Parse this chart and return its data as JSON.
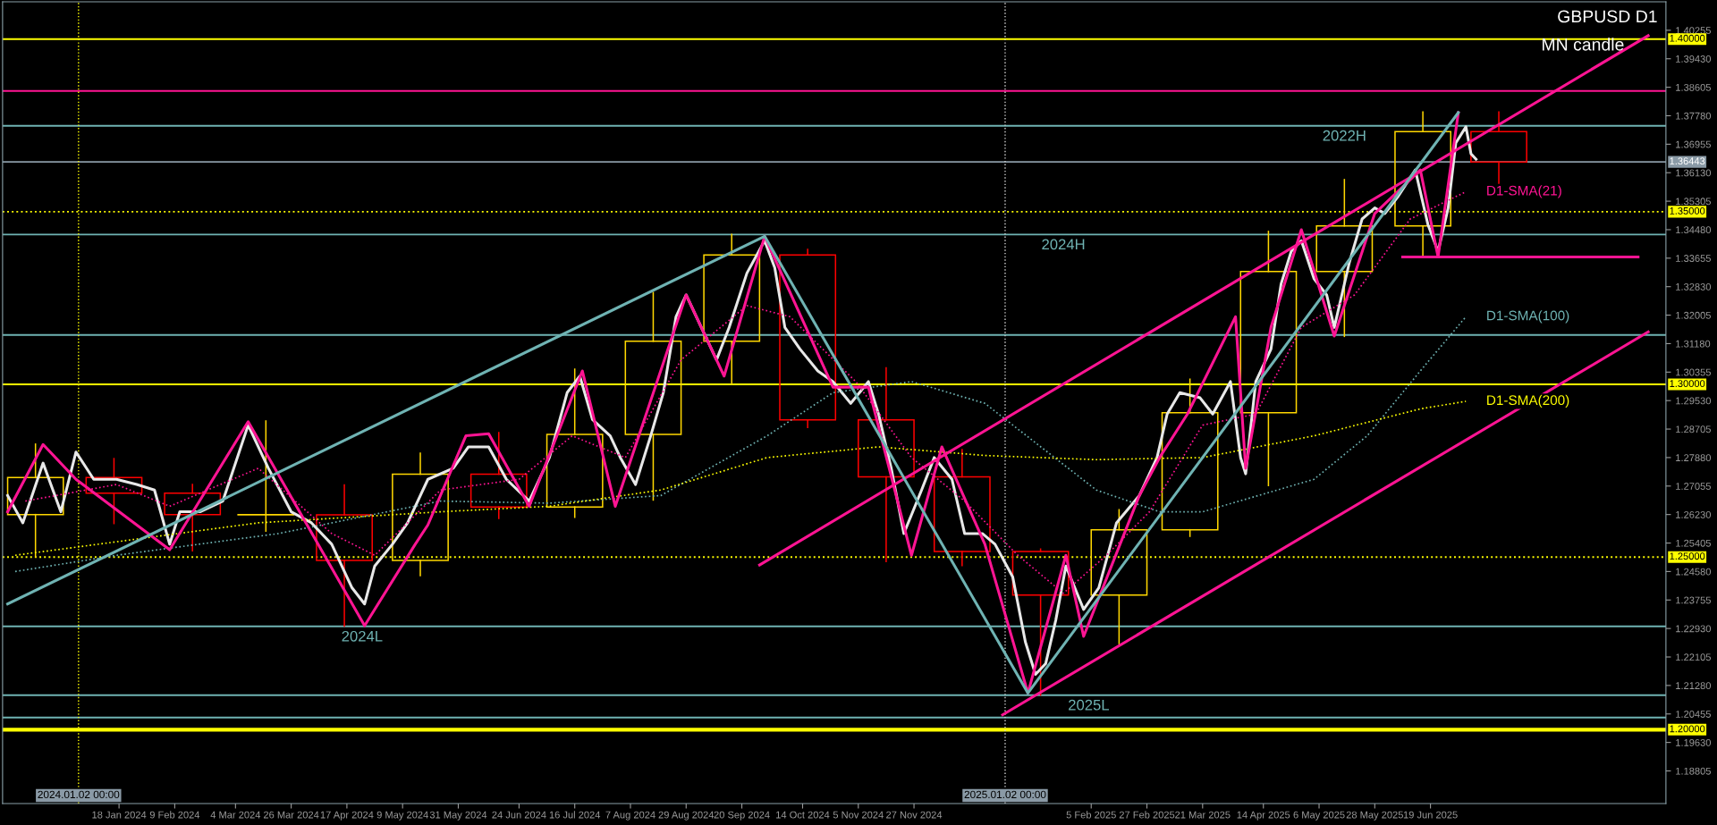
{
  "chart_data": {
    "type": "line",
    "title": "GBPUSD D1",
    "subtitle": "MN candle",
    "xlim": [
      "2023-12-03",
      "2025-09-20"
    ],
    "ylim": [
      1.1786,
      1.4108
    ],
    "xticks": [
      {
        "value": "2024-01-18",
        "label": "18 Jan 2024"
      },
      {
        "value": "2024-02-09",
        "label": "9 Feb 2024"
      },
      {
        "value": "2024-03-04",
        "label": "4 Mar 2024"
      },
      {
        "value": "2024-03-26",
        "label": "26 Mar 2024"
      },
      {
        "value": "2024-04-17",
        "label": "17 Apr 2024"
      },
      {
        "value": "2024-05-09",
        "label": "9 May 2024"
      },
      {
        "value": "2024-05-31",
        "label": "31 May 2024"
      },
      {
        "value": "2024-06-24",
        "label": "24 Jun 2024"
      },
      {
        "value": "2024-07-16",
        "label": "16 Jul 2024"
      },
      {
        "value": "2024-08-07",
        "label": "7 Aug 2024"
      },
      {
        "value": "2024-08-29",
        "label": "29 Aug 2024"
      },
      {
        "value": "2024-09-20",
        "label": "20 Sep 2024"
      },
      {
        "value": "2024-10-14",
        "label": "14 Oct 2024"
      },
      {
        "value": "2024-11-05",
        "label": "5 Nov 2024"
      },
      {
        "value": "2024-11-27",
        "label": "27 Nov 2024"
      },
      {
        "value": "2025-02-05",
        "label": "5 Feb 2025"
      },
      {
        "value": "2025-02-27",
        "label": "27 Feb 2025"
      },
      {
        "value": "2025-03-21",
        "label": "21 Mar 2025"
      },
      {
        "value": "2025-04-14",
        "label": "14 Apr 2025"
      },
      {
        "value": "2025-05-06",
        "label": "6 May 2025"
      },
      {
        "value": "2025-05-28",
        "label": "28 May 2025"
      },
      {
        "value": "2025-06-19",
        "label": "19 Jun 2025"
      }
    ],
    "yticks": [
      1.18805,
      {
        "value": 1.1963,
        "label": "1.19630"
      },
      1.20455,
      {
        "value": 1.2128,
        "label": "1.21280"
      },
      1.22105,
      {
        "value": 1.2293,
        "label": "1.22930"
      },
      1.23755,
      {
        "value": 1.2458,
        "label": "1.24580"
      },
      1.25405,
      {
        "value": 1.2623,
        "label": "1.26230"
      },
      1.27055,
      {
        "value": 1.2788,
        "label": "1.27880"
      },
      1.28705,
      {
        "value": 1.2953,
        "label": "1.29530"
      },
      1.30355,
      {
        "value": 1.3118,
        "label": "1.31180"
      },
      1.32005,
      {
        "value": 1.3283,
        "label": "1.32830"
      },
      1.33655,
      {
        "value": 1.3448,
        "label": "1.34480"
      },
      1.35305,
      {
        "value": 1.3613,
        "label": "1.36130"
      },
      1.36955,
      {
        "value": 1.3778,
        "label": "1.37780"
      },
      1.38605,
      {
        "value": 1.3943,
        "label": "1.39430"
      },
      1.40255
    ],
    "grid": false,
    "legend": false,
    "series": [
      {
        "type": "candlestick",
        "colors": [
          "#ffd700",
          "#ff0000",
          "#ff0000",
          "#ffd700",
          "#ff0000",
          "#ffd700",
          "#ff0000",
          "#ffd700",
          "#ffd700",
          "#ffd700",
          "#ff0000",
          "#ff0000",
          "#ff0000",
          "#ff0000",
          "#ffd700",
          "#ffd700",
          "#ffd700",
          "#ffd700",
          "#ffd700",
          "#ff0000"
        ],
        "x": [
          "2023-12-16",
          "2024-01-16",
          "2024-02-16",
          "2024-03-16",
          "2024-04-16",
          "2024-05-16",
          "2024-06-16",
          "2024-07-16",
          "2024-08-16",
          "2024-09-16",
          "2024-10-16",
          "2024-11-16",
          "2024-12-16",
          "2025-01-16",
          "2025-02-16",
          "2025-03-16",
          "2025-04-16",
          "2025-05-16",
          "2025-06-16",
          "2025-07-16"
        ],
        "ohlc": [
          [
            1.2623,
            1.2827,
            1.25,
            1.273
          ],
          [
            1.273,
            1.2785,
            1.2597,
            1.2685
          ],
          [
            1.2685,
            1.271,
            1.2518,
            1.2623
          ],
          [
            1.2623,
            1.2894,
            1.2575,
            1.2622
          ],
          [
            1.2622,
            1.2709,
            1.23,
            1.249
          ],
          [
            1.249,
            1.2801,
            1.2446,
            1.274
          ],
          [
            1.274,
            1.286,
            1.2612,
            1.2645
          ],
          [
            1.2645,
            1.3044,
            1.2615,
            1.2855
          ],
          [
            1.2855,
            1.3266,
            1.2665,
            1.3125
          ],
          [
            1.3125,
            1.3434,
            1.3001,
            1.3375
          ],
          [
            1.3375,
            1.3391,
            1.2875,
            1.2897
          ],
          [
            1.2897,
            1.3048,
            1.2487,
            1.2732
          ],
          [
            1.2732,
            1.2811,
            1.2475,
            1.2516
          ],
          [
            1.2516,
            1.2523,
            1.21,
            1.239
          ],
          [
            1.239,
            1.2637,
            1.2249,
            1.2579
          ],
          [
            1.2579,
            1.3015,
            1.256,
            1.2918
          ],
          [
            1.2918,
            1.3443,
            1.2707,
            1.3327
          ],
          [
            1.3327,
            1.3593,
            1.3139,
            1.3459
          ],
          [
            1.3459,
            1.3789,
            1.337,
            1.3732
          ],
          [
            1.3732,
            1.3789,
            1.358,
            1.3644
          ]
        ]
      },
      {
        "color": "#e8e8e8",
        "line_style": "solid",
        "x": [
          "2023-12-05",
          "2023-12-11",
          "2023-12-19",
          "2023-12-26",
          "2024-01-01",
          "2024-01-08",
          "2024-01-17",
          "2024-01-25",
          "2024-02-01",
          "2024-02-07",
          "2024-02-11",
          "2024-02-19",
          "2024-02-28",
          "2024-03-09",
          "2024-03-17",
          "2024-03-26",
          "2024-04-03",
          "2024-04-11",
          "2024-04-19",
          "2024-04-24",
          "2024-04-28",
          "2024-05-05",
          "2024-05-11",
          "2024-05-19",
          "2024-05-29",
          "2024-06-04",
          "2024-06-12",
          "2024-06-19",
          "2024-06-28",
          "2024-07-06",
          "2024-07-13",
          "2024-07-18",
          "2024-07-23",
          "2024-07-30",
          "2024-08-03",
          "2024-08-09",
          "2024-08-15",
          "2024-08-20",
          "2024-08-25",
          "2024-08-29",
          "2024-09-05",
          "2024-09-10",
          "2024-09-15",
          "2024-09-22",
          "2024-09-29",
          "2024-10-03",
          "2024-10-07",
          "2024-10-13",
          "2024-10-20",
          "2024-10-26",
          "2024-11-02",
          "2024-11-09",
          "2024-11-13",
          "2024-11-18",
          "2024-11-23",
          "2024-11-30",
          "2024-12-05",
          "2024-12-12",
          "2024-12-17",
          "2024-12-24",
          "2024-12-29",
          "2025-01-05",
          "2025-01-10",
          "2025-01-14",
          "2025-01-18",
          "2025-01-22",
          "2025-01-26",
          "2025-02-02",
          "2025-02-08",
          "2025-02-15",
          "2025-02-24",
          "2025-03-03",
          "2025-03-07",
          "2025-03-12",
          "2025-03-20",
          "2025-03-25",
          "2025-04-01",
          "2025-04-05",
          "2025-04-07",
          "2025-04-11",
          "2025-04-17",
          "2025-04-21",
          "2025-04-25",
          "2025-04-29",
          "2025-05-04",
          "2025-05-09",
          "2025-05-12",
          "2025-05-18",
          "2025-05-23",
          "2025-05-28",
          "2025-06-01",
          "2025-06-06",
          "2025-06-13",
          "2025-06-18",
          "2025-06-22",
          "2025-06-26",
          "2025-06-29",
          "2025-07-03",
          "2025-07-05",
          "2025-07-07"
        ],
        "values": [
          1.2678,
          1.2599,
          1.2772,
          1.2631,
          1.2804,
          1.2725,
          1.2725,
          1.271,
          1.2694,
          1.2537,
          1.2631,
          1.2631,
          1.2662,
          1.2882,
          1.2757,
          1.2631,
          1.2599,
          1.2537,
          1.2411,
          1.2364,
          1.2474,
          1.2537,
          1.2599,
          1.2725,
          1.2757,
          1.2819,
          1.2819,
          1.2725,
          1.2662,
          1.2788,
          1.2976,
          1.3024,
          1.2898,
          1.2851,
          1.2788,
          1.271,
          1.2851,
          1.2976,
          1.3196,
          1.3259,
          1.3149,
          1.3071,
          1.3165,
          1.3322,
          1.3416,
          1.3338,
          1.3165,
          1.3102,
          1.3039,
          1.3008,
          1.2945,
          1.3008,
          1.2914,
          1.2757,
          1.2568,
          1.2694,
          1.2788,
          1.2725,
          1.2568,
          1.2568,
          1.2537,
          1.2442,
          1.2254,
          1.216,
          1.2191,
          1.2317,
          1.2474,
          1.2348,
          1.2411,
          1.2599,
          1.2678,
          1.2788,
          1.2914,
          1.2976,
          1.2961,
          1.2914,
          1.3008,
          1.2788,
          1.2741,
          1.3008,
          1.3102,
          1.3291,
          1.3385,
          1.3416,
          1.3306,
          1.3259,
          1.3165,
          1.3354,
          1.3479,
          1.3511,
          1.3495,
          1.3542,
          1.3621,
          1.3463,
          1.3385,
          1.3511,
          1.3699,
          1.3746,
          1.3668,
          1.3652
        ]
      },
      {
        "type": "line",
        "name": "D1-SMA(21)",
        "color": "#ff1493",
        "line_style": "dotted",
        "x": [
          "2023-12-12",
          "2024-01-17",
          "2024-02-07",
          "2024-03-13",
          "2024-04-11",
          "2024-04-28",
          "2024-05-24",
          "2024-06-24",
          "2024-07-15",
          "2024-08-05",
          "2024-08-27",
          "2024-09-22",
          "2024-10-09",
          "2024-11-04",
          "2024-11-26",
          "2024-12-17",
          "2025-01-07",
          "2025-01-25",
          "2025-02-11",
          "2025-02-28",
          "2025-03-21",
          "2025-04-11",
          "2025-04-29",
          "2025-05-20",
          "2025-06-11",
          "2025-07-03"
        ],
        "values": [
          1.2662,
          1.271,
          1.2647,
          1.2757,
          1.2568,
          1.2505,
          1.2694,
          1.2725,
          1.2851,
          1.2788,
          1.3071,
          1.3228,
          1.3196,
          1.3008,
          1.2788,
          1.2662,
          1.2505,
          1.2395,
          1.2505,
          1.2631,
          1.2882,
          1.2914,
          1.3165,
          1.3259,
          1.3479,
          1.3558
        ]
      },
      {
        "type": "line",
        "name": "D1-SMA(100)",
        "color": "#6fb3b3",
        "line_style": "dotted",
        "x": [
          "2023-12-08",
          "2024-01-17",
          "2024-03-21",
          "2024-05-24",
          "2024-07-06",
          "2024-08-19",
          "2024-09-30",
          "2024-10-26",
          "2024-11-26",
          "2024-12-25",
          "2025-02-07",
          "2025-03-04",
          "2025-03-21",
          "2025-05-04",
          "2025-05-25",
          "2025-06-15",
          "2025-07-03"
        ],
        "values": [
          1.2458,
          1.2505,
          1.2568,
          1.2662,
          1.2656,
          1.2678,
          1.2851,
          1.2976,
          1.3008,
          1.2945,
          1.2694,
          1.2631,
          1.2631,
          1.2725,
          1.2851,
          1.3039,
          1.3196
        ]
      },
      {
        "type": "line",
        "name": "D1-SMA(200)",
        "color": "#ffff00",
        "line_style": "dotted",
        "x": [
          "2023-12-08",
          "2024-03-13",
          "2024-05-24",
          "2024-07-06",
          "2024-08-19",
          "2024-09-30",
          "2024-11-13",
          "2024-12-25",
          "2025-02-07",
          "2025-03-21",
          "2025-05-04",
          "2025-06-15",
          "2025-07-03"
        ],
        "values": [
          1.2505,
          1.2599,
          1.2631,
          1.2647,
          1.2694,
          1.2788,
          1.2819,
          1.2794,
          1.2782,
          1.2788,
          1.2851,
          1.2929,
          1.2951
        ]
      },
      {
        "type": "line",
        "color": "#ff1493",
        "line_style": "solid",
        "x": [
          "2024-09-27",
          "2025-09-13"
        ],
        "values": [
          1.2477,
          1.401
        ]
      },
      {
        "type": "line",
        "color": "#ff1493",
        "line_style": "solid",
        "x": [
          "2025-01-01",
          "2025-09-13"
        ],
        "values": [
          1.2043,
          1.3152
        ]
      },
      {
        "type": "line",
        "color": "#ff1493",
        "line_style": "solid",
        "x": [
          "2025-06-08",
          "2025-09-09"
        ],
        "values": [
          1.3369,
          1.3369
        ]
      },
      {
        "type": "line",
        "color": "#ff1493",
        "line_style": "solid",
        "x": [
          "2023-12-05",
          "2023-12-19",
          "2024-01-01",
          "2024-02-07",
          "2024-03-09",
          "2024-04-24",
          "2024-05-14",
          "2024-05-19",
          "2024-06-03",
          "2024-06-12",
          "2024-06-28",
          "2024-07-19",
          "2024-08-01",
          "2024-08-29",
          "2024-09-13",
          "2024-09-29",
          "2024-10-26",
          "2024-11-09",
          "2024-11-26",
          "2024-12-08",
          "2024-12-25",
          "2025-01-11",
          "2025-01-26",
          "2025-02-02",
          "2025-02-24",
          "2025-03-04",
          "2025-03-15",
          "2025-04-03",
          "2025-04-07",
          "2025-04-17",
          "2025-04-29",
          "2025-05-12",
          "2025-05-28",
          "2025-06-15",
          "2025-06-22",
          "2025-06-30"
        ],
        "values": [
          1.2631,
          1.2826,
          1.2725,
          1.2521,
          1.2892,
          1.2301,
          1.2537,
          1.2593,
          1.2851,
          1.2857,
          1.2647,
          1.3039,
          1.2647,
          1.3259,
          1.3024,
          1.3429,
          1.2992,
          1.2992,
          1.2505,
          1.2819,
          1.2537,
          1.2106,
          1.2505,
          1.227,
          1.2678,
          1.2788,
          1.2914,
          1.3196,
          1.2757,
          1.3165,
          1.3448,
          1.314,
          1.3495,
          1.3621,
          1.3369,
          1.3787
        ]
      },
      {
        "type": "line",
        "color": "#6fb3b3",
        "line_style": "solid",
        "x": [
          "2023-12-05",
          "2024-09-29",
          "2025-01-11",
          "2025-06-30"
        ],
        "values": [
          1.2364,
          1.3429,
          1.2106,
          1.3787
        ]
      }
    ],
    "ref_lines": [
      {
        "axis": "y",
        "value": 1.4,
        "label": "1.40000",
        "color": "#ffff00",
        "line_style": "solid"
      },
      {
        "axis": "y",
        "value": 1.385,
        "color": "#ff1493",
        "line_style": "solid"
      },
      {
        "axis": "y",
        "value": 1.3749,
        "color": "#6fb3b3",
        "line_style": "solid"
      },
      {
        "axis": "y",
        "value": 1.36443,
        "label": "1.36443",
        "color": "#8a9aa6",
        "line_style": "solid"
      },
      {
        "axis": "y",
        "value": 1.35,
        "label": "1.35000",
        "color": "#ffff00",
        "line_style": "dotted"
      },
      {
        "axis": "y",
        "value": 1.3434,
        "color": "#6fb3b3",
        "line_style": "solid"
      },
      {
        "axis": "y",
        "value": 1.3143,
        "color": "#6fb3b3",
        "line_style": "solid"
      },
      {
        "axis": "y",
        "value": 1.3,
        "label": "1.30000",
        "color": "#ffff00",
        "line_style": "solid"
      },
      {
        "axis": "y",
        "value": 1.25,
        "label": "1.25000",
        "color": "#ffff00",
        "line_style": "dotted"
      },
      {
        "axis": "y",
        "value": 1.2299,
        "color": "#6fb3b3",
        "line_style": "solid"
      },
      {
        "axis": "y",
        "value": 1.21,
        "color": "#6fb3b3",
        "line_style": "solid"
      },
      {
        "axis": "y",
        "value": 1.2035,
        "color": "#6fb3b3",
        "line_style": "solid"
      },
      {
        "axis": "y",
        "value": 1.2,
        "label": "1.20000",
        "color": "#ffff00",
        "line_style": "solid"
      },
      {
        "axis": "x",
        "value": "2024-01-02",
        "label": "2024.01.02 00:00",
        "color": "#ffff00",
        "line_style": "dotted"
      },
      {
        "axis": "x",
        "value": "2025-01-02",
        "label": "2025.01.02 00:00",
        "color": "#d0d0d0",
        "line_style": "dotted"
      }
    ],
    "annotations": [
      {
        "text": "2022H",
        "x": "2025-05-16",
        "y": 1.3749
      },
      {
        "text": "2024H",
        "x": "2025-01-25",
        "y": 1.3434
      },
      {
        "text": "2024L",
        "x": "2024-04-23",
        "y": 1.2299
      },
      {
        "text": "2025L",
        "x": "2025-02-04",
        "y": 1.21
      }
    ]
  }
}
